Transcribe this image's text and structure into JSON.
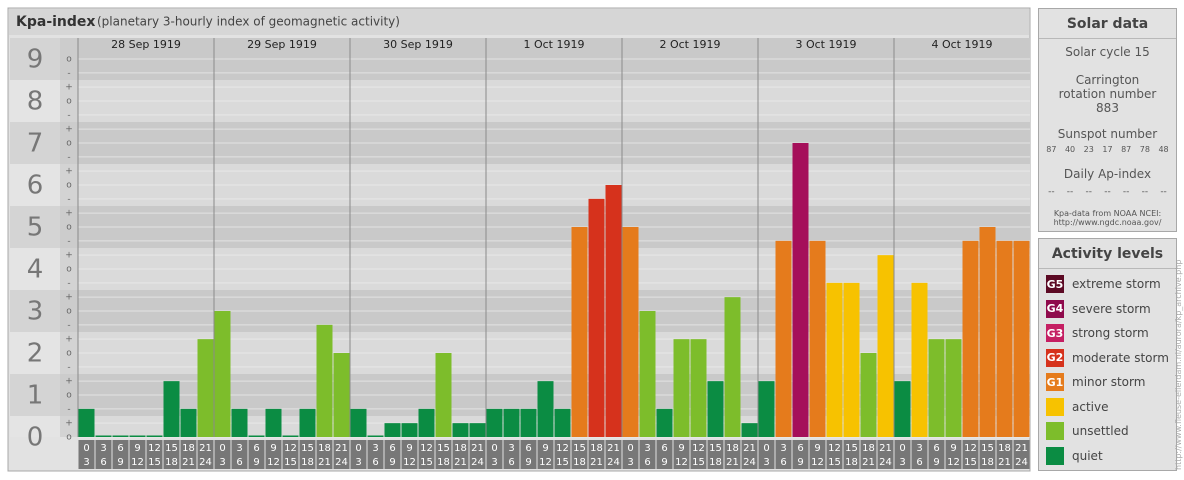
{
  "chart_data": {
    "type": "bar",
    "title": "Kpa-index",
    "subtitle": "(planetary 3-hourly index of geomagnetic activity)",
    "groups": [
      "28 Sep 1919",
      "29 Sep 1919",
      "30 Sep 1919",
      "1 Oct 1919",
      "2 Oct 1919",
      "3 Oct 1919",
      "4 Oct 1919"
    ],
    "hour_labels": [
      [
        "0",
        "3"
      ],
      [
        "3",
        "6"
      ],
      [
        "6",
        "9"
      ],
      [
        "9",
        "12"
      ],
      [
        "12",
        "15"
      ],
      [
        "15",
        "18"
      ],
      [
        "18",
        "21"
      ],
      [
        "21",
        "24"
      ]
    ],
    "values": [
      0.67,
      0,
      0,
      0,
      0,
      1.33,
      0.67,
      2.33,
      3,
      0.67,
      0,
      0.67,
      0,
      0.67,
      2.67,
      2,
      0.67,
      0,
      0.33,
      0.33,
      0.67,
      2,
      0.33,
      0.33,
      0.67,
      0.67,
      0.67,
      1.33,
      0.67,
      5,
      5.67,
      6,
      5,
      3,
      0.67,
      2.33,
      2.33,
      1.33,
      3.33,
      0.33,
      1.33,
      4.67,
      7,
      4.67,
      3.67,
      3.67,
      2,
      4.33,
      1.33,
      3.67,
      2.33,
      2.33,
      4.67,
      5,
      4.67,
      4.67
    ],
    "colors": [
      "#0b8c43",
      "#0b8c43",
      "#0b8c43",
      "#0b8c43",
      "#0b8c43",
      "#0b8c43",
      "#0b8c43",
      "#7dbd2b",
      "#7dbd2b",
      "#0b8c43",
      "#0b8c43",
      "#0b8c43",
      "#0b8c43",
      "#0b8c43",
      "#7dbd2b",
      "#7dbd2b",
      "#0b8c43",
      "#0b8c43",
      "#0b8c43",
      "#0b8c43",
      "#0b8c43",
      "#7dbd2b",
      "#0b8c43",
      "#0b8c43",
      "#0b8c43",
      "#0b8c43",
      "#0b8c43",
      "#0b8c43",
      "#0b8c43",
      "#e57b1c",
      "#d6321c",
      "#d6321c",
      "#e57b1c",
      "#7dbd2b",
      "#0b8c43",
      "#7dbd2b",
      "#7dbd2b",
      "#0b8c43",
      "#7dbd2b",
      "#0b8c43",
      "#0b8c43",
      "#e57b1c",
      "#a50f5a",
      "#e57b1c",
      "#f7c200",
      "#f7c200",
      "#7dbd2b",
      "#f7c200",
      "#0b8c43",
      "#f7c200",
      "#7dbd2b",
      "#7dbd2b",
      "#e57b1c",
      "#e57b1c",
      "#e57b1c",
      "#e57b1c"
    ],
    "ylim": [
      0,
      9.5
    ],
    "yticks": [
      0,
      1,
      2,
      3,
      4,
      5,
      6,
      7,
      8,
      9
    ],
    "yticks_minor": [
      {
        "value": 0,
        "label": "o"
      },
      {
        "value": 0.33,
        "label": "+"
      },
      {
        "value": 0.67,
        "label": "-"
      },
      {
        "value": 1,
        "label": "o"
      },
      {
        "value": 1.33,
        "label": "+"
      },
      {
        "value": 1.67,
        "label": "-"
      },
      {
        "value": 2,
        "label": "o"
      },
      {
        "value": 2.33,
        "label": "+"
      },
      {
        "value": 2.67,
        "label": "-"
      },
      {
        "value": 3,
        "label": "o"
      },
      {
        "value": 3.33,
        "label": "+"
      },
      {
        "value": 3.67,
        "label": "-"
      },
      {
        "value": 4,
        "label": "o"
      },
      {
        "value": 4.33,
        "label": "+"
      },
      {
        "value": 4.67,
        "label": "-"
      },
      {
        "value": 5,
        "label": "o"
      },
      {
        "value": 5.33,
        "label": "+"
      },
      {
        "value": 5.67,
        "label": "-"
      },
      {
        "value": 6,
        "label": "o"
      },
      {
        "value": 6.33,
        "label": "+"
      },
      {
        "value": 6.67,
        "label": "-"
      },
      {
        "value": 7,
        "label": "o"
      },
      {
        "value": 7.33,
        "label": "+"
      },
      {
        "value": 7.67,
        "label": "-"
      },
      {
        "value": 8,
        "label": "o"
      },
      {
        "value": 8.33,
        "label": "+"
      },
      {
        "value": 8.67,
        "label": "-"
      },
      {
        "value": 9,
        "label": "o"
      }
    ],
    "grid": true
  },
  "solar_data": {
    "title": "Solar data",
    "cycle": "Solar cycle 15",
    "carrington": "Carrington rotation number 883",
    "sunspot_title": "Sunspot number",
    "sunspot_numbers": [
      87,
      40,
      23,
      17,
      87,
      78,
      48
    ],
    "ap_title": "Daily Ap-index",
    "ap_values": [
      "--",
      "--",
      "--",
      "--",
      "--",
      "--",
      "--"
    ],
    "source": "Kpa-data from NOAA NCEI:",
    "source_url": "http://www.ngdc.noaa.gov/"
  },
  "activity_levels": {
    "title": "Activity levels",
    "items": [
      {
        "code": "G5",
        "name": "extreme storm",
        "color": "#5c0a24"
      },
      {
        "code": "G4",
        "name": "severe storm",
        "color": "#8f0a4c"
      },
      {
        "code": "G3",
        "name": "strong storm",
        "color": "#c51f63"
      },
      {
        "code": "G2",
        "name": "moderate storm",
        "color": "#d6321c"
      },
      {
        "code": "G1",
        "name": "minor storm",
        "color": "#e57b1c"
      },
      {
        "code": null,
        "name": "active",
        "color": "#f7c200"
      },
      {
        "code": null,
        "name": "unsettled",
        "color": "#7dbd2b"
      },
      {
        "code": null,
        "name": "quiet",
        "color": "#0b8c43"
      }
    ]
  },
  "credit": "http://www.fleuse-ellerdam.nl/aurora/kp_archive.php"
}
